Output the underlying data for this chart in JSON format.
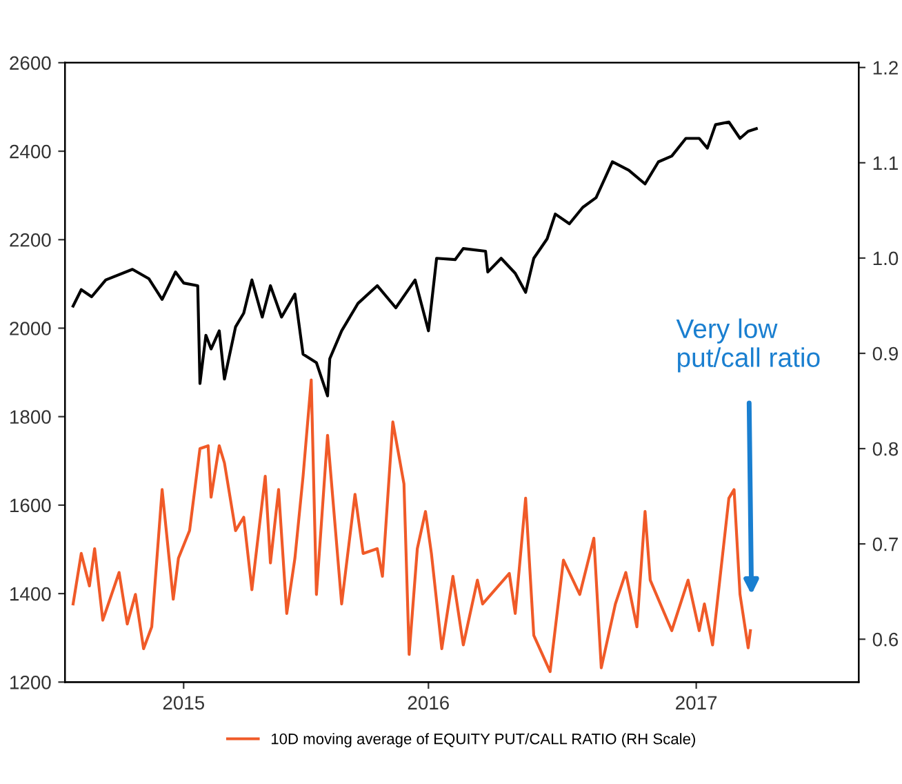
{
  "chart_data": {
    "type": "line",
    "xlim": [
      "2015-02-25",
      "2018-01-30"
    ],
    "xticks": [
      {
        "value": "2015-08-04",
        "label": "2015"
      },
      {
        "value": "2016-06-29",
        "label": "2016"
      },
      {
        "value": "2017-06-25",
        "label": "2017"
      }
    ],
    "ylim": [
      1200,
      2600
    ],
    "yticks": [
      1200,
      1400,
      1600,
      1800,
      2000,
      2200,
      2400,
      2600
    ],
    "y2lim": [
      0.555,
      1.205
    ],
    "y2ticks": [
      0.6,
      0.7,
      0.8,
      0.9,
      {
        "value": 1.0,
        "label": "1.0"
      },
      1.1,
      1.2
    ],
    "grid": false,
    "legend": "bottom",
    "series": [
      {
        "color": "#000000",
        "x": [
          "2015-03-08",
          "2015-03-19",
          "2015-04-02",
          "2015-04-21",
          "2015-05-27",
          "2015-06-18",
          "2015-07-06",
          "2015-07-24",
          "2015-08-04",
          "2015-08-23",
          "2015-08-26",
          "2015-09-03",
          "2015-09-10",
          "2015-09-21",
          "2015-09-28",
          "2015-10-13",
          "2015-10-24",
          "2015-11-04",
          "2015-11-18",
          "2015-11-29",
          "2015-12-14",
          "2016-01-01",
          "2016-01-12",
          "2016-01-30",
          "2016-02-14",
          "2016-02-17",
          "2016-03-04",
          "2016-03-26",
          "2016-04-21",
          "2016-05-16",
          "2016-06-11",
          "2016-06-29",
          "2016-07-10",
          "2016-08-04",
          "2016-08-15",
          "2016-09-14",
          "2016-09-17",
          "2016-10-05",
          "2016-10-24",
          "2016-11-07",
          "2016-11-18",
          "2016-12-06",
          "2016-12-17",
          "2017-01-05",
          "2017-01-23",
          "2017-02-10",
          "2017-03-04",
          "2017-03-26",
          "2017-04-17",
          "2017-05-05",
          "2017-05-23",
          "2017-06-11",
          "2017-06-29",
          "2017-07-10",
          "2017-07-21",
          "2017-08-08",
          "2017-08-23",
          "2017-09-03",
          "2017-09-14"
        ],
        "values": [
          2050,
          2087,
          2071,
          2109,
          2133,
          2112,
          2065,
          2127,
          2102,
          2096,
          1875,
          1984,
          1953,
          1994,
          1885,
          2003,
          2034,
          2109,
          2025,
          2096,
          2025,
          2077,
          1941,
          1922,
          1847,
          1931,
          1994,
          2056,
          2096,
          2046,
          2109,
          1994,
          2158,
          2155,
          2180,
          2174,
          2127,
          2158,
          2124,
          2081,
          2158,
          2202,
          2258,
          2236,
          2273,
          2295,
          2376,
          2357,
          2326,
          2376,
          2389,
          2429,
          2429,
          2407,
          2460,
          2466,
          2429,
          2445,
          2451
        ]
      },
      {
        "name": "10D moving average of EQUITY PUT/CALL RATIO (RH Scale)",
        "color": "#f05a28",
        "axis": "y2",
        "x": [
          "2015-03-08",
          "2015-03-19",
          "2015-03-30",
          "2015-04-06",
          "2015-04-17",
          "2015-05-09",
          "2015-05-20",
          "2015-05-31",
          "2015-06-11",
          "2015-06-22",
          "2015-07-06",
          "2015-07-21",
          "2015-07-28",
          "2015-08-12",
          "2015-08-26",
          "2015-09-06",
          "2015-09-10",
          "2015-09-21",
          "2015-09-28",
          "2015-10-13",
          "2015-10-24",
          "2015-11-04",
          "2015-11-22",
          "2015-11-29",
          "2015-12-10",
          "2015-12-21",
          "2016-01-01",
          "2016-01-12",
          "2016-01-23",
          "2016-01-30",
          "2016-02-14",
          "2016-03-04",
          "2016-03-22",
          "2016-04-02",
          "2016-04-21",
          "2016-04-28",
          "2016-05-12",
          "2016-05-27",
          "2016-06-03",
          "2016-06-14",
          "2016-06-25",
          "2016-07-03",
          "2016-07-17",
          "2016-08-01",
          "2016-08-15",
          "2016-09-03",
          "2016-09-10",
          "2016-10-16",
          "2016-10-24",
          "2016-11-07",
          "2016-11-18",
          "2016-12-10",
          "2016-12-28",
          "2017-01-19",
          "2017-02-07",
          "2017-02-17",
          "2017-03-08",
          "2017-03-22",
          "2017-04-06",
          "2017-04-17",
          "2017-04-24",
          "2017-05-23",
          "2017-06-14",
          "2017-06-29",
          "2017-07-06",
          "2017-07-17",
          "2017-08-08",
          "2017-08-15",
          "2017-08-23",
          "2017-09-03",
          "2017-09-06"
        ],
        "values": [
          0.637,
          0.69,
          0.656,
          0.695,
          0.62,
          0.67,
          0.616,
          0.647,
          0.59,
          0.613,
          0.757,
          0.642,
          0.685,
          0.714,
          0.8,
          0.803,
          0.749,
          0.803,
          0.785,
          0.714,
          0.728,
          0.652,
          0.771,
          0.68,
          0.757,
          0.627,
          0.685,
          0.771,
          0.872,
          0.647,
          0.814,
          0.637,
          0.752,
          0.69,
          0.695,
          0.666,
          0.828,
          0.763,
          0.584,
          0.695,
          0.734,
          0.69,
          0.59,
          0.666,
          0.594,
          0.662,
          0.637,
          0.669,
          0.627,
          0.748,
          0.604,
          0.566,
          0.683,
          0.647,
          0.706,
          0.57,
          0.637,
          0.67,
          0.613,
          0.734,
          0.662,
          0.609,
          0.662,
          0.609,
          0.637,
          0.594,
          0.748,
          0.757,
          0.647,
          0.591,
          0.609
        ]
      }
    ],
    "annotations": [
      "Very low\nput/call ratio"
    ]
  }
}
